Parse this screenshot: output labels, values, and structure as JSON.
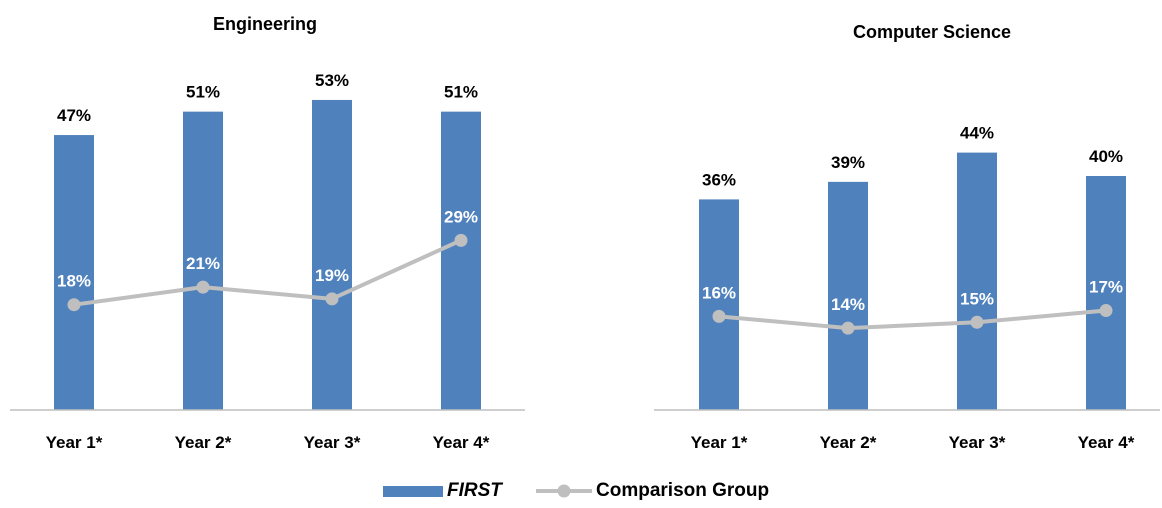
{
  "colors": {
    "bar": "#4f81bd",
    "line": "#bfbfbf",
    "axis": "#bfbfbf",
    "bar_label": "#000000",
    "line_label": "#ffffff"
  },
  "legend": {
    "placement": "bottom-center",
    "items": [
      {
        "label": "FIRST",
        "marker": "bar",
        "italic": true
      },
      {
        "label": "Comparison Group",
        "marker": "line-circle",
        "italic": false
      }
    ]
  },
  "chart_data": [
    {
      "type": "bar",
      "title": "Engineering",
      "categories": [
        "Year 1*",
        "Year 2*",
        "Year 3*",
        "Year 4*"
      ],
      "ylim": [
        0,
        57
      ],
      "grid": false,
      "series": [
        {
          "name": "FIRST",
          "type": "bar",
          "values": [
            47,
            51,
            53,
            51
          ],
          "labels": [
            "47%",
            "51%",
            "53%",
            "51%"
          ]
        },
        {
          "name": "Comparison Group",
          "type": "line",
          "values": [
            18,
            21,
            19,
            29
          ],
          "labels": [
            "18%",
            "21%",
            "19%",
            "29%"
          ]
        }
      ]
    },
    {
      "type": "bar",
      "title": "Computer Science",
      "categories": [
        "Year 1*",
        "Year 2*",
        "Year 3*",
        "Year 4*"
      ],
      "ylim": [
        0,
        57
      ],
      "grid": false,
      "series": [
        {
          "name": "FIRST",
          "type": "bar",
          "values": [
            36,
            39,
            44,
            40
          ],
          "labels": [
            "36%",
            "39%",
            "44%",
            "40%"
          ]
        },
        {
          "name": "Comparison Group",
          "type": "line",
          "values": [
            16,
            14,
            15,
            17
          ],
          "labels": [
            "16%",
            "14%",
            "15%",
            "17%"
          ]
        }
      ]
    }
  ]
}
